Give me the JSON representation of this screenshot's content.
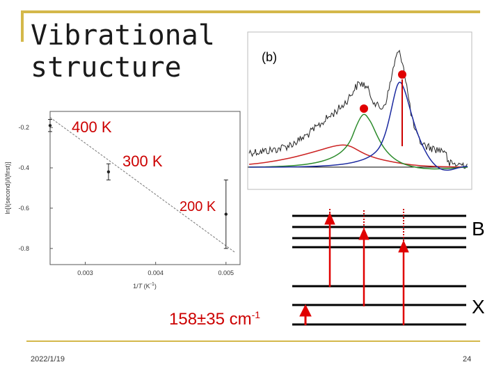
{
  "slide": {
    "title_line1": "Vibrational",
    "title_line2": "structure",
    "date": "2022/1/19",
    "page_number": "24",
    "accent_color": "#d4b84a",
    "highlight_color": "#cc0000"
  },
  "arrhenius_plot": {
    "ylabel": "ln[I(second)/I(first)]",
    "xlabel_main": "1/",
    "xlabel_var": "T",
    "xlabel_unit": " (K",
    "xlabel_exp": "-1",
    "xlabel_close": ")",
    "x_ticks": [
      "0.003",
      "0.004",
      "0.005"
    ],
    "y_ticks": [
      "-0.2",
      "-0.4",
      "-0.6",
      "-0.8"
    ]
  },
  "temperatures": {
    "t400": "400 K",
    "t300": "300 K",
    "t200": "200 K"
  },
  "spectrum": {
    "panel_label": "(b)"
  },
  "levels": {
    "upper_label": "B",
    "lower_label": "X"
  },
  "energy": {
    "value": "158±35 cm",
    "exponent": "-1"
  },
  "chart_data": {
    "type": "scatter",
    "title": "",
    "xlabel": "1/T (K-1)",
    "ylabel": "ln[I(second)/I(first)]",
    "x": [
      0.0025,
      0.00333,
      0.005
    ],
    "y": [
      -0.19,
      -0.42,
      -0.63
    ],
    "error": [
      0.03,
      0.04,
      0.17
    ],
    "point_labels": [
      "400 K",
      "300 K",
      "200 K"
    ],
    "fit_line": {
      "style": "dashed",
      "x": [
        0.0025,
        0.00513
      ],
      "y": [
        -0.15,
        -0.82
      ]
    },
    "xlim": [
      0.0025,
      0.0052
    ],
    "ylim": [
      -0.88,
      -0.12
    ],
    "x_ticks": [
      0.003,
      0.004,
      0.005
    ],
    "y_ticks": [
      -0.2,
      -0.4,
      -0.6,
      -0.8
    ],
    "grid": false
  }
}
